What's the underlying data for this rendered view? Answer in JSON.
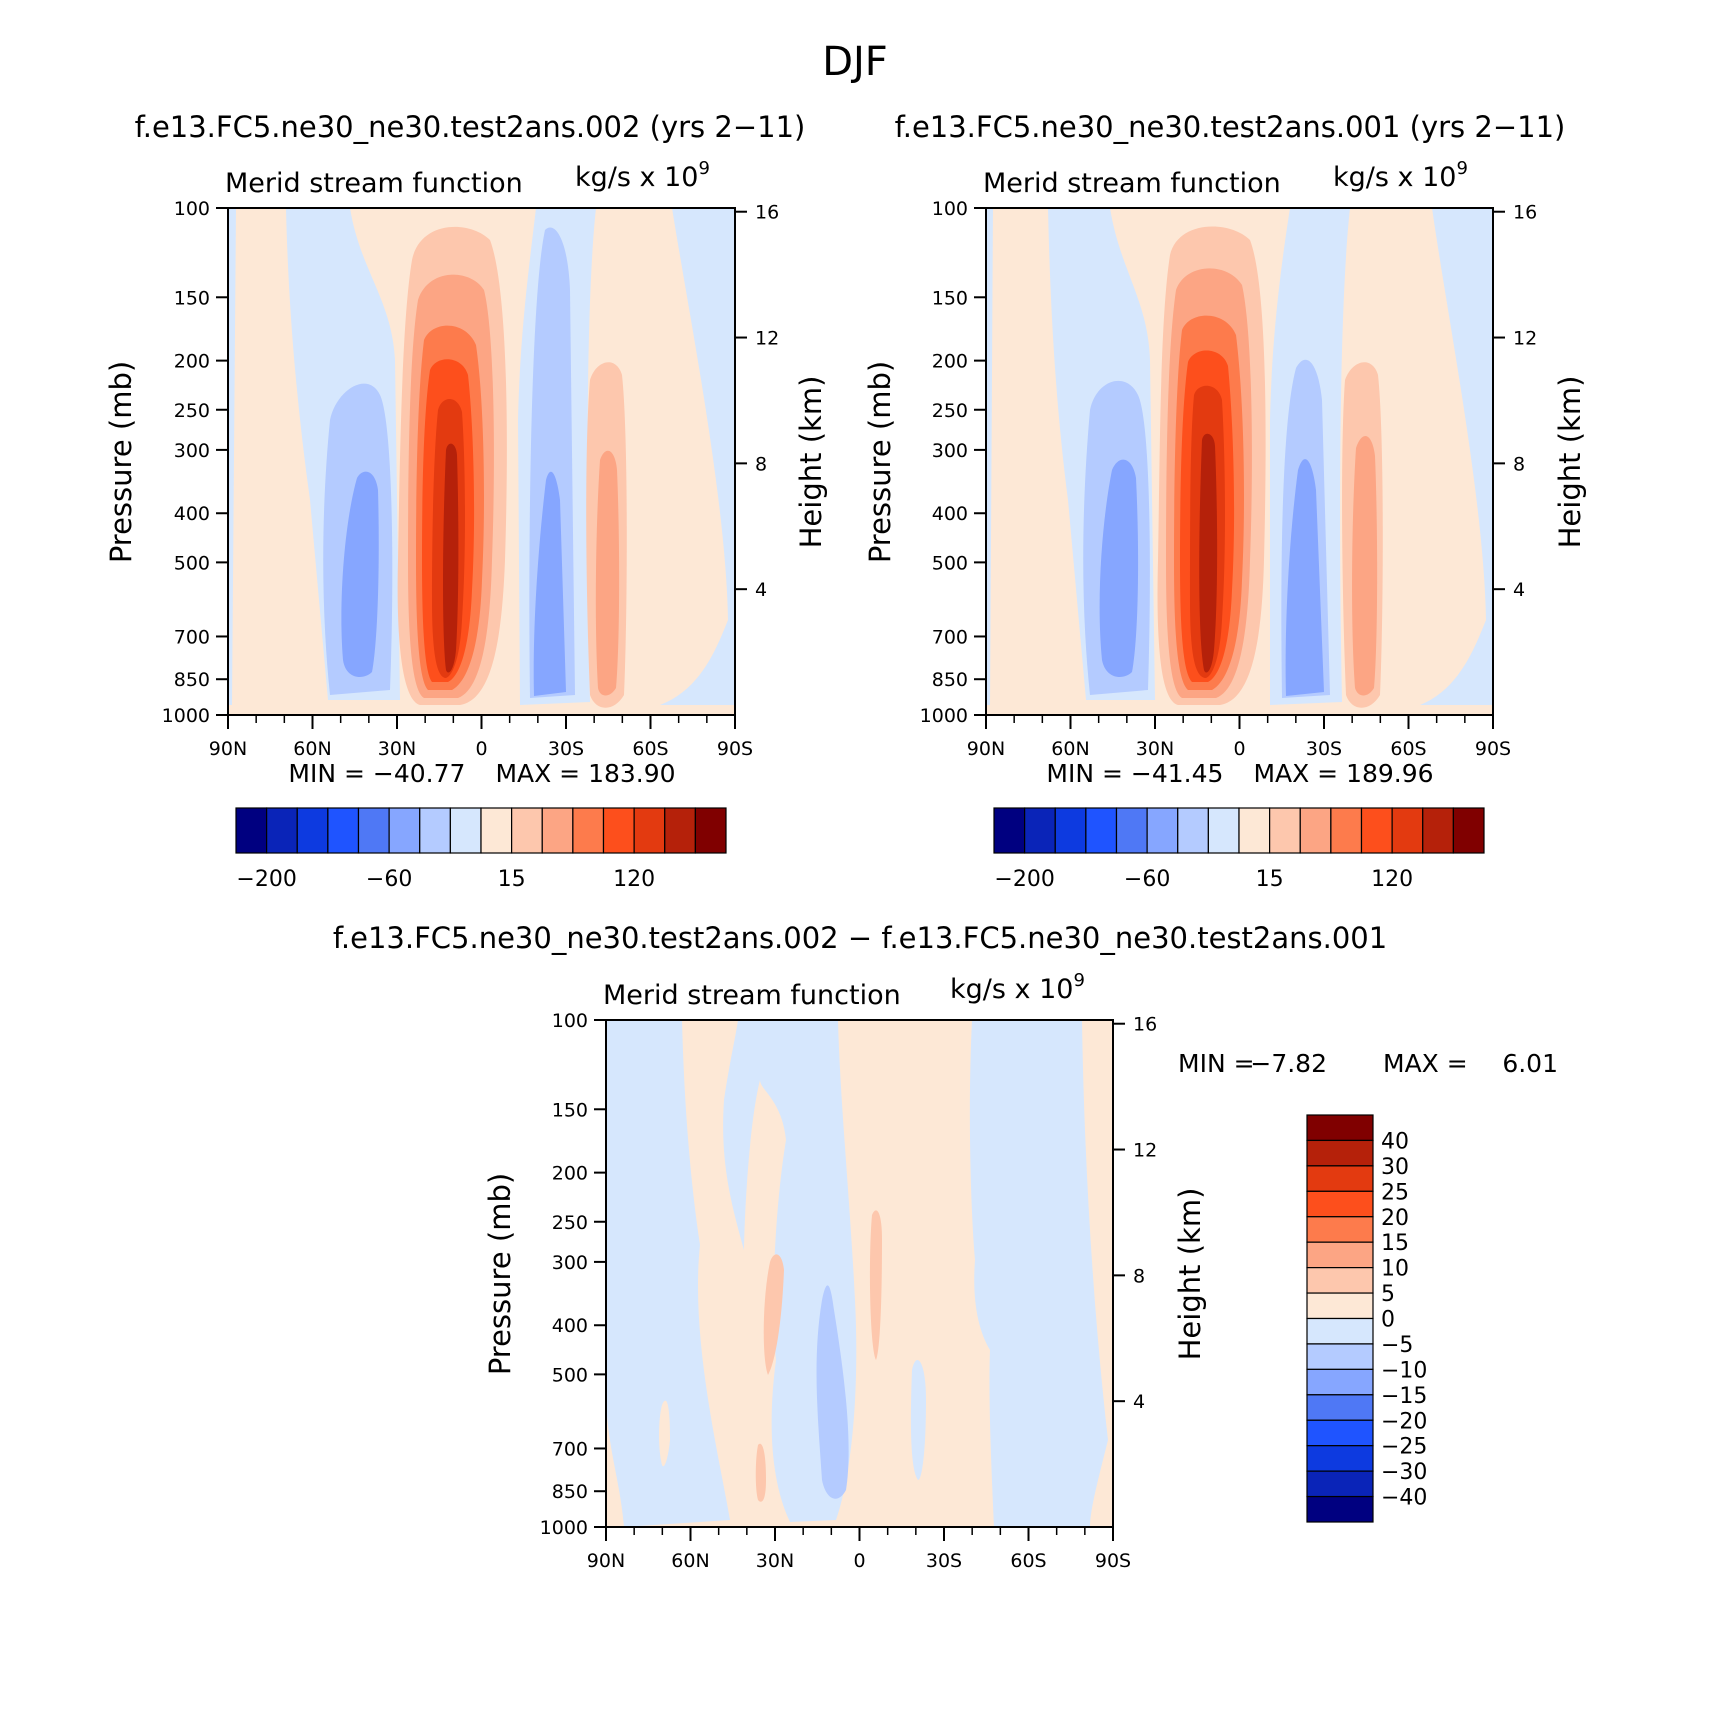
{
  "figure": {
    "title": "DJF",
    "unit_text": "kg/s x 10",
    "unit_exponent": "9"
  },
  "chart_data": [
    {
      "type": "heatmap",
      "title": "f.e13.FC5.ne30_ne30.test2ans.002 (yrs 2−11)",
      "subtitle": "Merid stream function",
      "units": "kg/s x 10^9",
      "xlabel": "",
      "ylabel": "Pressure (mb)",
      "y2label": "Height (km)",
      "x_ticks": [
        "90N",
        "60N",
        "30N",
        "0",
        "30S",
        "60S",
        "90S"
      ],
      "y_ticks": [
        100,
        150,
        200,
        250,
        300,
        400,
        500,
        700,
        850,
        1000
      ],
      "y2_ticks": [
        16,
        12,
        8,
        4
      ],
      "min_label": "MIN = −40.77",
      "max_label": "MAX = 183.90",
      "min": -40.77,
      "max": 183.9,
      "colorbar_labels": [
        "−200",
        "−60",
        "15",
        "120"
      ]
    },
    {
      "type": "heatmap",
      "title": "f.e13.FC5.ne30_ne30.test2ans.001 (yrs 2−11)",
      "subtitle": "Merid stream function",
      "units": "kg/s x 10^9",
      "xlabel": "",
      "ylabel": "Pressure (mb)",
      "y2label": "Height (km)",
      "x_ticks": [
        "90N",
        "60N",
        "30N",
        "0",
        "30S",
        "60S",
        "90S"
      ],
      "y_ticks": [
        100,
        150,
        200,
        250,
        300,
        400,
        500,
        700,
        850,
        1000
      ],
      "y2_ticks": [
        16,
        12,
        8,
        4
      ],
      "min_label": "MIN = −41.45",
      "max_label": "MAX = 189.96",
      "min": -41.45,
      "max": 189.96,
      "colorbar_labels": [
        "−200",
        "−60",
        "15",
        "120"
      ]
    },
    {
      "type": "heatmap",
      "title": "f.e13.FC5.ne30_ne30.test2ans.002 − f.e13.FC5.ne30_ne30.test2ans.001",
      "subtitle": "Merid stream function",
      "units": "kg/s x 10^9",
      "xlabel": "",
      "ylabel": "Pressure (mb)",
      "y2label": "Height (km)",
      "x_ticks": [
        "90N",
        "60N",
        "30N",
        "0",
        "30S",
        "60S",
        "90S"
      ],
      "y_ticks": [
        100,
        150,
        200,
        250,
        300,
        400,
        500,
        700,
        850,
        1000
      ],
      "y2_ticks": [
        16,
        12,
        8,
        4
      ],
      "min_label": "MIN =",
      "min_value": "−7.82",
      "max_label": "MAX =",
      "max_value": "6.01",
      "min": -7.82,
      "max": 6.01,
      "colorbar_labels": [
        "40",
        "30",
        "25",
        "20",
        "15",
        "10",
        "5",
        "0",
        "−5",
        "−10",
        "−15",
        "−20",
        "−25",
        "−30",
        "−40"
      ]
    }
  ],
  "colors": {
    "scale": [
      "#000080",
      "#0a24b8",
      "#0d3ae0",
      "#1f54ff",
      "#4f78f5",
      "#86a6ff",
      "#b4cbff",
      "#d6e7fd",
      "#fde8d6",
      "#fdc7ad",
      "#fca584",
      "#fd7b4c",
      "#fd4f1c",
      "#e33a10",
      "#b5210a",
      "#800000"
    ]
  }
}
